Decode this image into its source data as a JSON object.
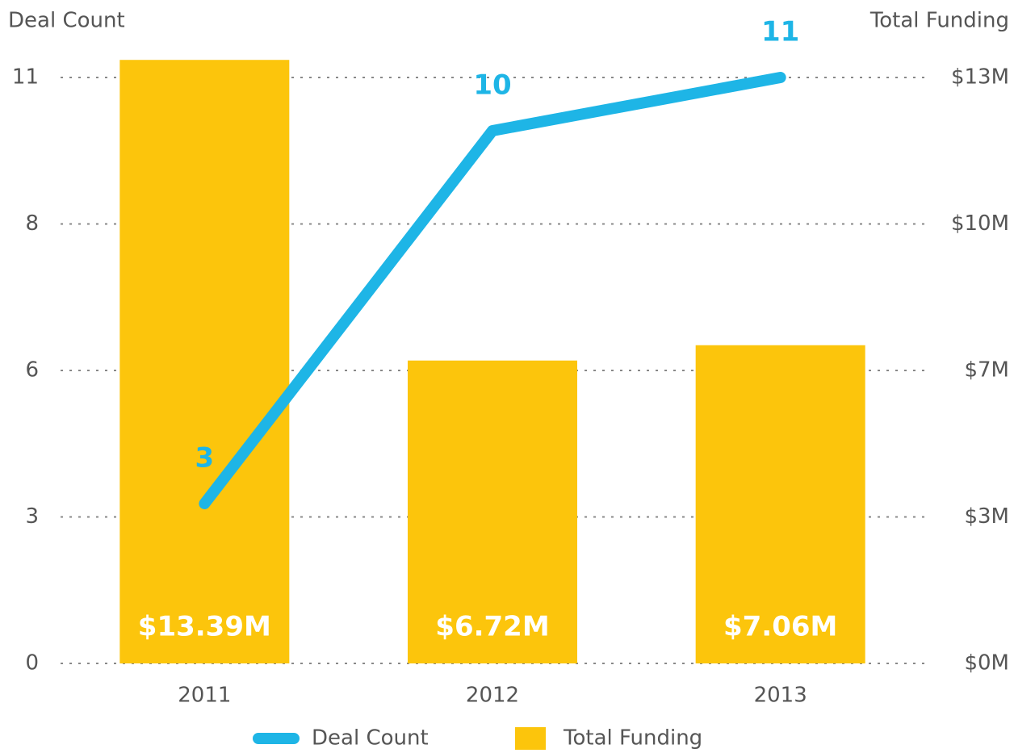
{
  "chart_data": {
    "type": "bar",
    "y_label": "Deal Count",
    "y2_label": "Total Funding",
    "categories": [
      "2011",
      "2012",
      "2013"
    ],
    "ylim": [
      0,
      11
    ],
    "yticks": [
      0,
      {
        "value": 2.75,
        "label": "3"
      },
      {
        "value": 5.5,
        "label": "6"
      },
      {
        "value": 8.25,
        "label": "8"
      },
      11
    ],
    "y2lim": [
      0,
      13
    ],
    "y2ticks": [
      {
        "value": 0,
        "label": "$0M"
      },
      {
        "value": 3.25,
        "label": "$3M"
      },
      {
        "value": 6.5,
        "label": "$7M"
      },
      {
        "value": 9.75,
        "label": "$10M"
      },
      {
        "value": 13,
        "label": "$13M"
      }
    ],
    "grid": true,
    "legend": "bottom",
    "series": [
      {
        "name": "Deal Count",
        "type": "line",
        "color": "#1eb5e6",
        "values": [
          3,
          10,
          11
        ]
      },
      {
        "name": "Total Funding",
        "type": "bar",
        "axis": "y2",
        "color": "#fcc50c",
        "values": [
          13.39,
          6.72,
          7.06
        ],
        "value_labels": [
          "$13.39M",
          "$6.72M",
          "$7.06M"
        ]
      }
    ]
  }
}
